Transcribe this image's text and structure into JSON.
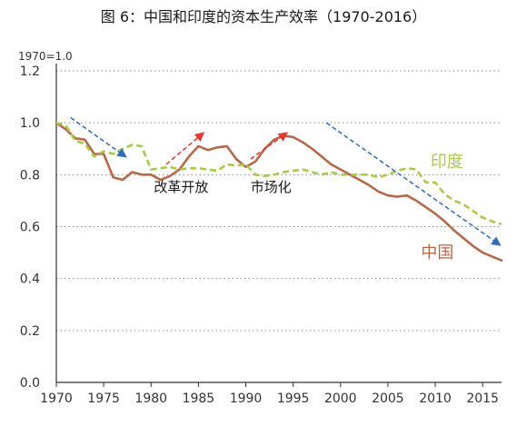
{
  "chart_data": {
    "type": "line",
    "title": "图 6：中国和印度的资本生产效率（1970-2016）",
    "unit_label": "1970=1.0",
    "xlim": [
      1970,
      2017
    ],
    "ylim": [
      0.0,
      1.2
    ],
    "x_ticks": [
      1970,
      1975,
      1980,
      1985,
      1990,
      1995,
      2000,
      2005,
      2010,
      2015
    ],
    "y_ticks": [
      "0.0",
      "0.2",
      "0.4",
      "0.6",
      "0.8",
      "1.0",
      "1.2"
    ],
    "grid": "horizontal-dotted",
    "series": [
      {
        "name": "中国",
        "color": "#b5694a",
        "style": "solid",
        "points": [
          [
            1970,
            1.0
          ],
          [
            1971,
            0.975
          ],
          [
            1972,
            0.94
          ],
          [
            1973,
            0.935
          ],
          [
            1974,
            0.88
          ],
          [
            1975,
            0.88
          ],
          [
            1976,
            0.79
          ],
          [
            1977,
            0.78
          ],
          [
            1978,
            0.81
          ],
          [
            1979,
            0.8
          ],
          [
            1980,
            0.8
          ],
          [
            1981,
            0.78
          ],
          [
            1982,
            0.795
          ],
          [
            1983,
            0.82
          ],
          [
            1984,
            0.87
          ],
          [
            1985,
            0.91
          ],
          [
            1986,
            0.895
          ],
          [
            1987,
            0.905
          ],
          [
            1988,
            0.91
          ],
          [
            1989,
            0.86
          ],
          [
            1990,
            0.83
          ],
          [
            1991,
            0.85
          ],
          [
            1992,
            0.9
          ],
          [
            1993,
            0.935
          ],
          [
            1994,
            0.95
          ],
          [
            1995,
            0.945
          ],
          [
            1996,
            0.925
          ],
          [
            1997,
            0.9
          ],
          [
            1998,
            0.87
          ],
          [
            1999,
            0.84
          ],
          [
            2000,
            0.82
          ],
          [
            2001,
            0.8
          ],
          [
            2002,
            0.78
          ],
          [
            2003,
            0.76
          ],
          [
            2004,
            0.735
          ],
          [
            2005,
            0.72
          ],
          [
            2006,
            0.715
          ],
          [
            2007,
            0.72
          ],
          [
            2008,
            0.7
          ],
          [
            2009,
            0.675
          ],
          [
            2010,
            0.65
          ],
          [
            2011,
            0.62
          ],
          [
            2012,
            0.585
          ],
          [
            2013,
            0.555
          ],
          [
            2014,
            0.525
          ],
          [
            2015,
            0.5
          ],
          [
            2016,
            0.485
          ],
          [
            2017,
            0.47
          ]
        ]
      },
      {
        "name": "印度",
        "color": "#a8c94a",
        "style": "dashed",
        "points": [
          [
            1970,
            1.0
          ],
          [
            1971,
            0.99
          ],
          [
            1972,
            0.93
          ],
          [
            1973,
            0.92
          ],
          [
            1974,
            0.87
          ],
          [
            1975,
            0.89
          ],
          [
            1976,
            0.88
          ],
          [
            1977,
            0.9
          ],
          [
            1978,
            0.915
          ],
          [
            1979,
            0.91
          ],
          [
            1980,
            0.82
          ],
          [
            1981,
            0.825
          ],
          [
            1982,
            0.83
          ],
          [
            1983,
            0.82
          ],
          [
            1984,
            0.825
          ],
          [
            1985,
            0.825
          ],
          [
            1986,
            0.82
          ],
          [
            1987,
            0.815
          ],
          [
            1988,
            0.84
          ],
          [
            1989,
            0.835
          ],
          [
            1990,
            0.84
          ],
          [
            1991,
            0.8
          ],
          [
            1992,
            0.795
          ],
          [
            1993,
            0.8
          ],
          [
            1994,
            0.81
          ],
          [
            1995,
            0.815
          ],
          [
            1996,
            0.82
          ],
          [
            1997,
            0.81
          ],
          [
            1998,
            0.8
          ],
          [
            1999,
            0.81
          ],
          [
            2000,
            0.8
          ],
          [
            2001,
            0.8
          ],
          [
            2002,
            0.8
          ],
          [
            2003,
            0.8
          ],
          [
            2004,
            0.79
          ],
          [
            2005,
            0.8
          ],
          [
            2006,
            0.815
          ],
          [
            2007,
            0.825
          ],
          [
            2008,
            0.82
          ],
          [
            2009,
            0.77
          ],
          [
            2010,
            0.77
          ],
          [
            2011,
            0.725
          ],
          [
            2012,
            0.7
          ],
          [
            2013,
            0.685
          ],
          [
            2014,
            0.66
          ],
          [
            2015,
            0.635
          ],
          [
            2016,
            0.62
          ],
          [
            2017,
            0.61
          ]
        ]
      }
    ],
    "trend_arrows": [
      {
        "name": "arrow-1972-1977",
        "color": "#2f6db5",
        "from": [
          1971.5,
          1.02
        ],
        "to": [
          1977.3,
          0.87
        ]
      },
      {
        "name": "arrow-1981-1985",
        "color": "#e2382e",
        "from": [
          1981.6,
          0.84
        ],
        "to": [
          1985.5,
          0.96
        ]
      },
      {
        "name": "arrow-1990-1994",
        "color": "#e2382e",
        "from": [
          1990.5,
          0.86
        ],
        "to": [
          1994.3,
          0.96
        ]
      },
      {
        "name": "arrow-1998-2017",
        "color": "#2f6db5",
        "from": [
          1998.5,
          1.0
        ],
        "to": [
          2016.8,
          0.53
        ]
      }
    ],
    "annotations": [
      {
        "name": "annotation-reform",
        "text": "改革开放",
        "x": 1980.3,
        "y": 0.735
      },
      {
        "name": "annotation-market",
        "text": "市场化",
        "x": 1990.5,
        "y": 0.735
      }
    ],
    "series_labels": [
      {
        "name": "label-india",
        "text": "印度",
        "x": 2009.5,
        "y": 0.83,
        "color": "#a8c94a"
      },
      {
        "name": "label-china",
        "text": "中国",
        "x": 2008.5,
        "y": 0.48,
        "color": "#b5694a"
      }
    ]
  }
}
